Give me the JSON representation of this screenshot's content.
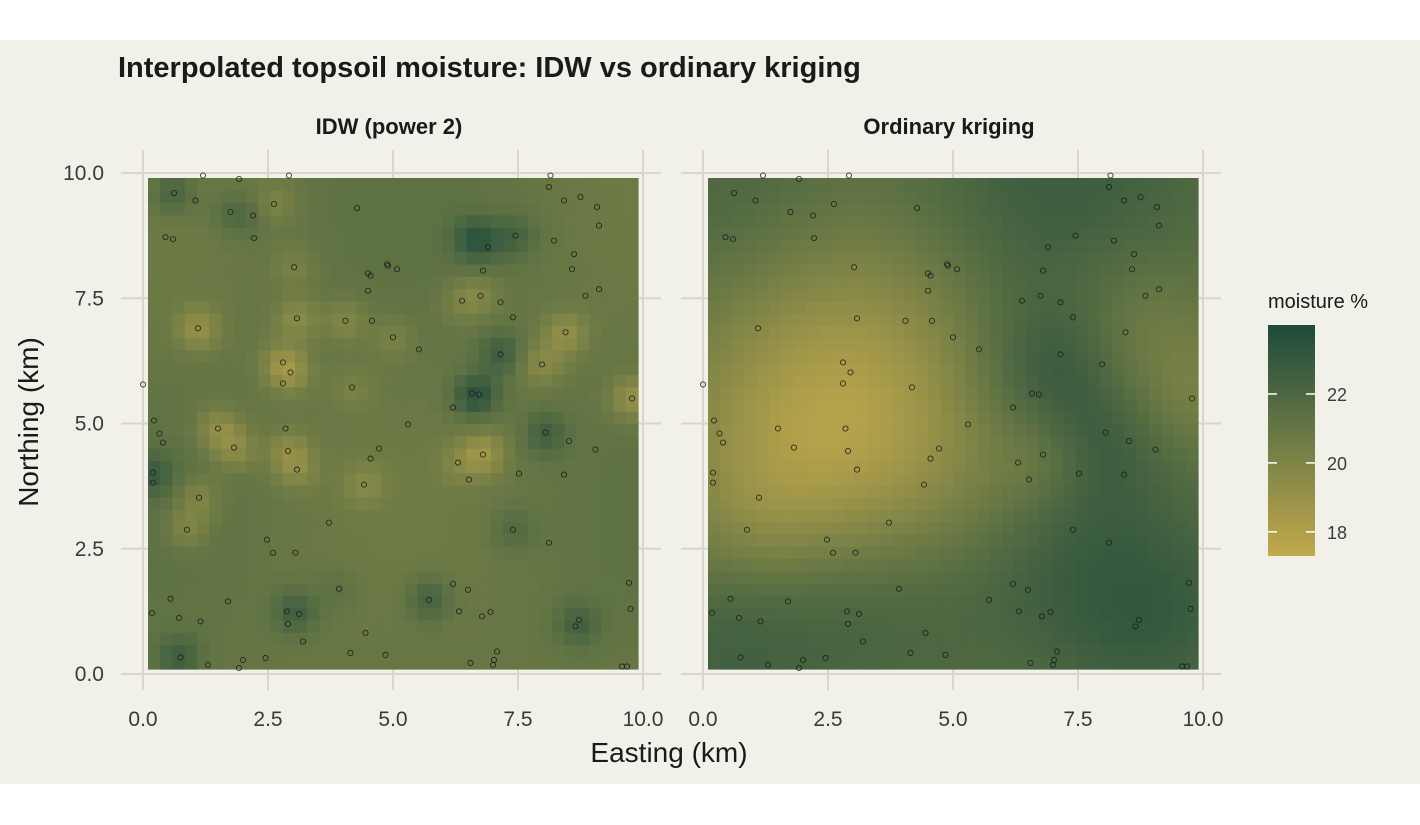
{
  "chart_data": {
    "type": "heatmap",
    "title": "Interpolated topsoil moisture: IDW vs ordinary kriging",
    "xlabel": "Easting (km)",
    "ylabel": "Northing (km)",
    "xlim": [
      0,
      10
    ],
    "ylim": [
      0,
      10
    ],
    "x_ticks": [
      "0.0",
      "2.5",
      "5.0",
      "7.5",
      "10.0"
    ],
    "y_ticks": [
      "0.0",
      "2.5",
      "5.0",
      "7.5",
      "10.0"
    ],
    "x_tick_values": [
      0,
      2.5,
      5,
      7.5,
      10
    ],
    "y_tick_values": [
      0,
      2.5,
      5,
      7.5,
      10
    ],
    "grid": true,
    "facets": [
      {
        "name": "IDW (power 2)",
        "method": "idw"
      },
      {
        "name": "Ordinary kriging",
        "method": "kriging"
      }
    ],
    "grid_extent": {
      "x": [
        0.1,
        9.9
      ],
      "y": [
        0.1,
        9.9
      ],
      "cells": 40
    },
    "legend": {
      "title": "moisture %",
      "position": "right",
      "min": 17.3,
      "max": 24.0,
      "ticks": [
        18,
        20,
        22
      ],
      "tick_labels": [
        "18",
        "20",
        "22"
      ],
      "colors": [
        "#c2a94c",
        "#6e7b45",
        "#1c4a3c"
      ]
    },
    "points_style": {
      "marker": "open circle",
      "color": "#1a1a1a"
    },
    "sample_points": [
      [
        0.0,
        5.78
      ],
      [
        0.18,
        1.22
      ],
      [
        0.2,
        4.02
      ],
      [
        0.2,
        3.82
      ],
      [
        0.22,
        5.06
      ],
      [
        0.33,
        4.8
      ],
      [
        0.4,
        4.62
      ],
      [
        0.45,
        8.72
      ],
      [
        0.55,
        1.5
      ],
      [
        0.6,
        8.68
      ],
      [
        0.62,
        9.6
      ],
      [
        0.72,
        1.12
      ],
      [
        0.75,
        0.33
      ],
      [
        0.88,
        2.88
      ],
      [
        1.1,
        6.9
      ],
      [
        1.12,
        3.52
      ],
      [
        1.15,
        1.05
      ],
      [
        1.2,
        9.95
      ],
      [
        1.3,
        0.18
      ],
      [
        1.5,
        4.9
      ],
      [
        1.7,
        1.45
      ],
      [
        1.75,
        9.22
      ],
      [
        1.82,
        4.52
      ],
      [
        1.92,
        9.88
      ],
      [
        1.92,
        0.12
      ],
      [
        2.0,
        0.28
      ],
      [
        2.2,
        9.15
      ],
      [
        2.22,
        8.7
      ],
      [
        2.45,
        0.32
      ],
      [
        2.48,
        2.68
      ],
      [
        2.6,
        2.42
      ],
      [
        2.62,
        9.38
      ],
      [
        2.8,
        6.22
      ],
      [
        2.8,
        5.8
      ],
      [
        2.85,
        4.9
      ],
      [
        2.88,
        1.25
      ],
      [
        2.9,
        1.0
      ],
      [
        2.9,
        4.45
      ],
      [
        2.92,
        9.95
      ],
      [
        2.95,
        6.02
      ],
      [
        3.02,
        8.12
      ],
      [
        3.05,
        2.42
      ],
      [
        3.08,
        7.1
      ],
      [
        3.08,
        4.08
      ],
      [
        3.12,
        1.2
      ],
      [
        3.2,
        0.65
      ],
      [
        3.72,
        3.02
      ],
      [
        3.92,
        1.7
      ],
      [
        4.05,
        7.05
      ],
      [
        4.15,
        0.42
      ],
      [
        4.18,
        5.72
      ],
      [
        4.28,
        9.3
      ],
      [
        4.42,
        3.78
      ],
      [
        4.45,
        0.82
      ],
      [
        4.5,
        8.0
      ],
      [
        4.5,
        7.65
      ],
      [
        4.55,
        4.3
      ],
      [
        4.55,
        7.95
      ],
      [
        4.58,
        7.05
      ],
      [
        4.72,
        4.5
      ],
      [
        4.85,
        0.38
      ],
      [
        4.88,
        8.18
      ],
      [
        4.9,
        8.15
      ],
      [
        5.0,
        6.72
      ],
      [
        5.08,
        8.08
      ],
      [
        5.3,
        4.98
      ],
      [
        5.52,
        6.48
      ],
      [
        5.72,
        1.48
      ],
      [
        6.2,
        5.32
      ],
      [
        6.2,
        1.8
      ],
      [
        6.3,
        4.22
      ],
      [
        6.32,
        1.25
      ],
      [
        6.38,
        7.45
      ],
      [
        6.5,
        1.68
      ],
      [
        6.52,
        3.88
      ],
      [
        6.55,
        0.22
      ],
      [
        6.58,
        5.6
      ],
      [
        6.72,
        5.58
      ],
      [
        6.75,
        7.55
      ],
      [
        6.78,
        1.15
      ],
      [
        6.8,
        8.05
      ],
      [
        6.8,
        4.38
      ],
      [
        6.9,
        8.52
      ],
      [
        6.95,
        1.24
      ],
      [
        7.0,
        0.18
      ],
      [
        7.02,
        0.28
      ],
      [
        7.08,
        0.45
      ],
      [
        7.15,
        6.38
      ],
      [
        7.15,
        7.42
      ],
      [
        7.4,
        7.12
      ],
      [
        7.4,
        2.88
      ],
      [
        7.45,
        8.75
      ],
      [
        7.52,
        4.0
      ],
      [
        7.98,
        6.18
      ],
      [
        8.05,
        4.82
      ],
      [
        8.12,
        2.62
      ],
      [
        8.12,
        9.72
      ],
      [
        8.15,
        9.95
      ],
      [
        8.22,
        8.65
      ],
      [
        8.42,
        3.98
      ],
      [
        8.45,
        6.82
      ],
      [
        8.52,
        4.65
      ],
      [
        8.58,
        8.08
      ],
      [
        8.62,
        8.38
      ],
      [
        8.65,
        0.95
      ],
      [
        8.72,
        1.08
      ],
      [
        8.75,
        9.52
      ],
      [
        8.85,
        7.55
      ],
      [
        9.05,
        4.48
      ],
      [
        9.08,
        9.32
      ],
      [
        9.12,
        8.95
      ],
      [
        9.12,
        7.68
      ],
      [
        9.58,
        0.15
      ],
      [
        9.68,
        0.15
      ],
      [
        9.72,
        1.82
      ],
      [
        9.75,
        1.3
      ],
      [
        9.78,
        5.5
      ],
      [
        8.42,
        9.45
      ],
      [
        1.05,
        9.45
      ]
    ],
    "idw_bumps": [
      [
        0.6,
        9.6,
        1.5
      ],
      [
        1.75,
        9.2,
        0.8
      ],
      [
        6.6,
        8.7,
        1.7
      ],
      [
        6.9,
        8.6,
        0.8
      ],
      [
        7.45,
        8.75,
        1.2
      ],
      [
        7.15,
        6.4,
        1.6
      ],
      [
        6.6,
        5.55,
        1.8
      ],
      [
        6.8,
        5.6,
        0.8
      ],
      [
        8.05,
        4.8,
        1.5
      ],
      [
        0.2,
        4.0,
        1.5
      ],
      [
        0.72,
        0.35,
        1.6
      ],
      [
        3.05,
        1.25,
        1.6
      ],
      [
        5.72,
        1.5,
        1.5
      ],
      [
        8.7,
        1.0,
        1.4
      ],
      [
        7.4,
        2.9,
        0.9
      ],
      [
        2.2,
        9.15,
        0.6
      ],
      [
        3.9,
        1.7,
        0.5
      ],
      [
        1.1,
        6.9,
        -1.8
      ],
      [
        2.8,
        6.2,
        -1.6
      ],
      [
        2.95,
        6.0,
        -1.2
      ],
      [
        3.08,
        7.1,
        -1.5
      ],
      [
        4.05,
        7.05,
        -1.2
      ],
      [
        1.5,
        4.9,
        -1.6
      ],
      [
        1.85,
        4.5,
        -1.5
      ],
      [
        2.9,
        4.45,
        -1.4
      ],
      [
        3.08,
        4.08,
        -1.1
      ],
      [
        4.42,
        3.78,
        -1.1
      ],
      [
        6.8,
        4.4,
        -2.0
      ],
      [
        7.98,
        6.2,
        -1.4
      ],
      [
        8.45,
        6.8,
        -1.8
      ],
      [
        9.78,
        5.5,
        -2.0
      ],
      [
        1.12,
        3.5,
        -1.2
      ],
      [
        0.88,
        2.9,
        -1.2
      ],
      [
        2.62,
        9.38,
        -1.0
      ],
      [
        3.02,
        8.12,
        -0.8
      ],
      [
        6.38,
        7.45,
        -0.9
      ],
      [
        6.75,
        7.55,
        -0.9
      ],
      [
        6.3,
        4.2,
        -0.8
      ],
      [
        5.0,
        6.7,
        -0.8
      ],
      [
        4.18,
        5.7,
        -0.7
      ]
    ],
    "kriging_bumps": [
      [
        7.0,
        9.2,
        2.3,
        1.6
      ],
      [
        6.6,
        5.7,
        1.2,
        1.0
      ],
      [
        0.6,
        9.4,
        1.8,
        1.0
      ],
      [
        8.0,
        4.7,
        1.0,
        1.2
      ],
      [
        0.45,
        0.6,
        1.3,
        1.1
      ],
      [
        3.0,
        1.2,
        1.4,
        1.0
      ],
      [
        8.8,
        1.0,
        1.4,
        1.2
      ],
      [
        5.8,
        1.6,
        1.5,
        0.8
      ],
      [
        7.2,
        6.4,
        0.9,
        0.9
      ],
      [
        7.4,
        2.8,
        1.2,
        0.6
      ],
      [
        9.5,
        2.0,
        1.5,
        0.5
      ],
      [
        3.0,
        6.2,
        2.3,
        -2.5
      ],
      [
        1.8,
        4.3,
        1.6,
        -1.3
      ],
      [
        8.6,
        6.8,
        1.3,
        -1.4
      ],
      [
        6.8,
        4.3,
        0.7,
        -0.9
      ],
      [
        9.8,
        5.5,
        0.8,
        -0.8
      ],
      [
        4.5,
        4.0,
        1.8,
        -0.8
      ],
      [
        1.0,
        3.0,
        1.0,
        -0.6
      ]
    ]
  }
}
